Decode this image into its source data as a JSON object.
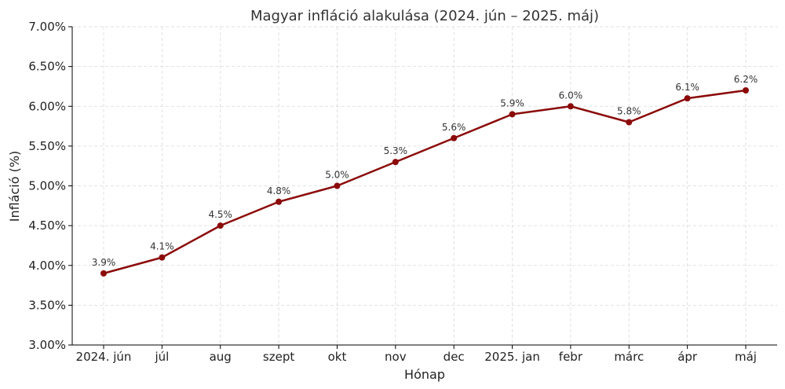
{
  "chart_data": {
    "type": "line",
    "title": "Magyar infláció alakulása (2024. jún – 2025. máj)",
    "xlabel": "Hónap",
    "ylabel": "Infláció (%)",
    "categories": [
      "2024. jún",
      "júl",
      "aug",
      "szept",
      "okt",
      "nov",
      "dec",
      "2025. jan",
      "febr",
      "márc",
      "ápr",
      "máj"
    ],
    "series": [
      {
        "values": [
          3.9,
          4.1,
          4.5,
          4.8,
          5.0,
          5.3,
          5.6,
          5.9,
          6.0,
          5.8,
          6.1,
          6.2
        ],
        "data_labels": [
          "3.9%",
          "4.1%",
          "4.5%",
          "4.8%",
          "5.0%",
          "5.3%",
          "5.6%",
          "5.9%",
          "6.0%",
          "5.8%",
          "6.1%",
          "6.2%"
        ],
        "color": "#8b0a0a"
      }
    ],
    "ylim": [
      3.0,
      7.0
    ],
    "yticks": [
      3.0,
      3.5,
      4.0,
      4.5,
      5.0,
      5.5,
      6.0,
      6.5,
      7.0
    ],
    "ytick_labels": [
      "3.00%",
      "3.50%",
      "4.00%",
      "4.50%",
      "5.00%",
      "5.50%",
      "6.00%",
      "6.50%",
      "7.00%"
    ],
    "grid": true,
    "grid_style": "dashed"
  }
}
